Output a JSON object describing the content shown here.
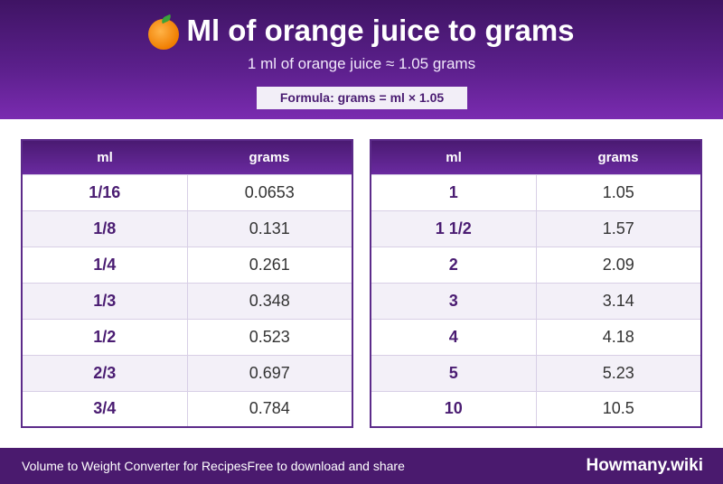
{
  "header": {
    "title": "Ml of orange juice to grams",
    "emoji_icon": "orange-icon",
    "subtitle": "1 ml of orange juice ≈ 1.05 grams",
    "formula": "Formula: grams = ml × 1.05"
  },
  "tables": [
    {
      "columns": [
        "ml",
        "grams"
      ],
      "rows": [
        {
          "ml": "1/16",
          "grams": "0.0653"
        },
        {
          "ml": "1/8",
          "grams": "0.131"
        },
        {
          "ml": "1/4",
          "grams": "0.261"
        },
        {
          "ml": "1/3",
          "grams": "0.348"
        },
        {
          "ml": "1/2",
          "grams": "0.523"
        },
        {
          "ml": "2/3",
          "grams": "0.697"
        },
        {
          "ml": "3/4",
          "grams": "0.784"
        }
      ]
    },
    {
      "columns": [
        "ml",
        "grams"
      ],
      "rows": [
        {
          "ml": "1",
          "grams": "1.05"
        },
        {
          "ml": "1 1/2",
          "grams": "1.57"
        },
        {
          "ml": "2",
          "grams": "2.09"
        },
        {
          "ml": "3",
          "grams": "3.14"
        },
        {
          "ml": "4",
          "grams": "4.18"
        },
        {
          "ml": "5",
          "grams": "5.23"
        },
        {
          "ml": "10",
          "grams": "10.5"
        }
      ]
    }
  ],
  "footer": {
    "left_text_1": "Volume to Weight Converter for Recipes",
    "left_text_2": "Free to download and share",
    "brand": "Howmany.wiki"
  },
  "colors": {
    "header_purple": "#5a1f8a",
    "accent_text": "#4a1c72",
    "footer_purple": "#4a1a6e"
  }
}
